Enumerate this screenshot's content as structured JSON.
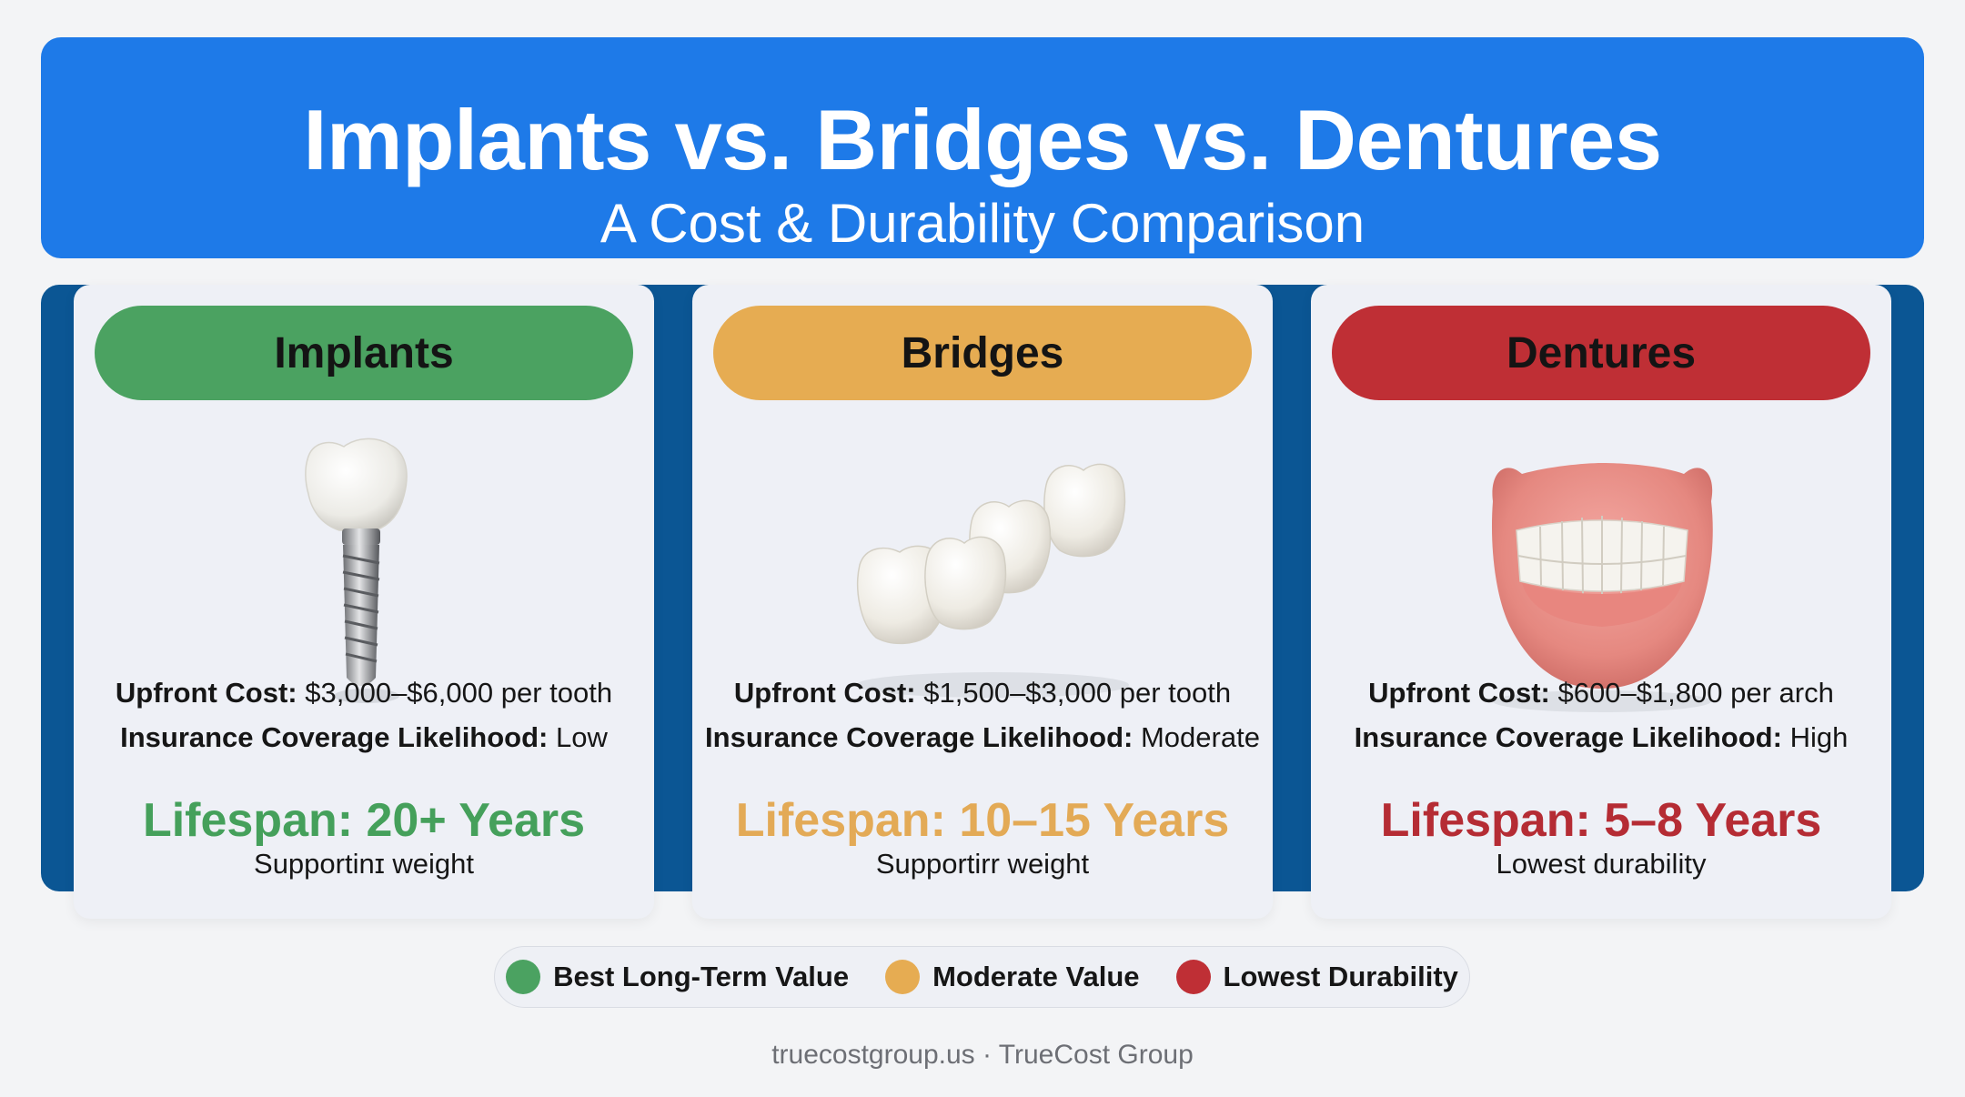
{
  "header": {
    "title": "Implants vs. Bridges vs. Dentures",
    "subtitle": "A Cost & Durability Comparison"
  },
  "colors": {
    "header_blue": "#1e7ae8",
    "band_navy": "#0b5694",
    "green": "#4ba261",
    "amber": "#e6ac52",
    "red": "#bf2f35"
  },
  "cards": [
    {
      "name": "Implants",
      "icon": "dental-implant-icon",
      "cost_label": "Upfront Cost:",
      "cost_value": "$3,000–$6,000 per tooth",
      "insurance_label": "Insurance Coverage Likelihood:",
      "insurance_value": "Low",
      "lifespan": "Lifespan: 20+ Years",
      "lifespan_note": "Supportinɪ weight"
    },
    {
      "name": "Bridges",
      "icon": "dental-bridge-icon",
      "cost_label": "Upfront Cost:",
      "cost_value": "$1,500–$3,000 per tooth",
      "insurance_label": "Insurance Coverage Likelihood:",
      "insurance_value": "Moderate",
      "lifespan": "Lifespan: 10–15 Years",
      "lifespan_note": "Supportirr weight"
    },
    {
      "name": "Dentures",
      "icon": "dentures-icon",
      "cost_label": "Upfront Cost:",
      "cost_value": "$600–$1,800 per arch",
      "insurance_label": "Insurance Coverage Likelihood:",
      "insurance_value": "High",
      "lifespan": "Lifespan: 5–8 Years",
      "lifespan_note": "Lowest durability"
    }
  ],
  "legend": [
    {
      "label": "Best Long-Term Value",
      "color": "#4ba261"
    },
    {
      "label": "Moderate Value",
      "color": "#e6ac52"
    },
    {
      "label": "Lowest Durability",
      "color": "#bf2f35"
    }
  ],
  "footer": "truecostgroup.us · TrueCost Group"
}
